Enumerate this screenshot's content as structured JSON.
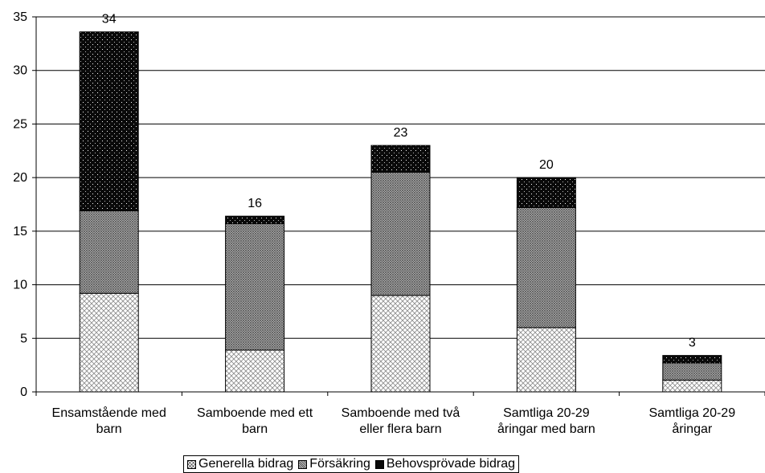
{
  "chart_data": {
    "type": "bar",
    "stacked": true,
    "categories": [
      [
        "Ensamstående med",
        "barn"
      ],
      [
        "Samboende med ett",
        "barn"
      ],
      [
        "Samboende med två",
        "eller flera barn"
      ],
      [
        "Samtliga 20-29",
        "åringar med barn"
      ],
      [
        "Samtliga 20-29",
        "åringar"
      ]
    ],
    "series": [
      {
        "name": "Generella bidrag",
        "values": [
          9.2,
          3.9,
          9.0,
          6.0,
          1.1
        ],
        "pattern": "crosshatch"
      },
      {
        "name": "Försäkring",
        "values": [
          7.7,
          11.8,
          11.5,
          11.2,
          1.6
        ],
        "pattern": "dense"
      },
      {
        "name": "Behovsprövade bidrag",
        "values": [
          16.7,
          0.7,
          2.5,
          2.8,
          0.7
        ],
        "pattern": "dots"
      }
    ],
    "totals": [
      "34",
      "16",
      "23",
      "20",
      "3"
    ],
    "ylim": [
      0,
      35
    ],
    "yticks": [
      "0",
      "5",
      "10",
      "15",
      "20",
      "25",
      "30",
      "35"
    ],
    "grid": true,
    "legend_position": "bottom"
  }
}
